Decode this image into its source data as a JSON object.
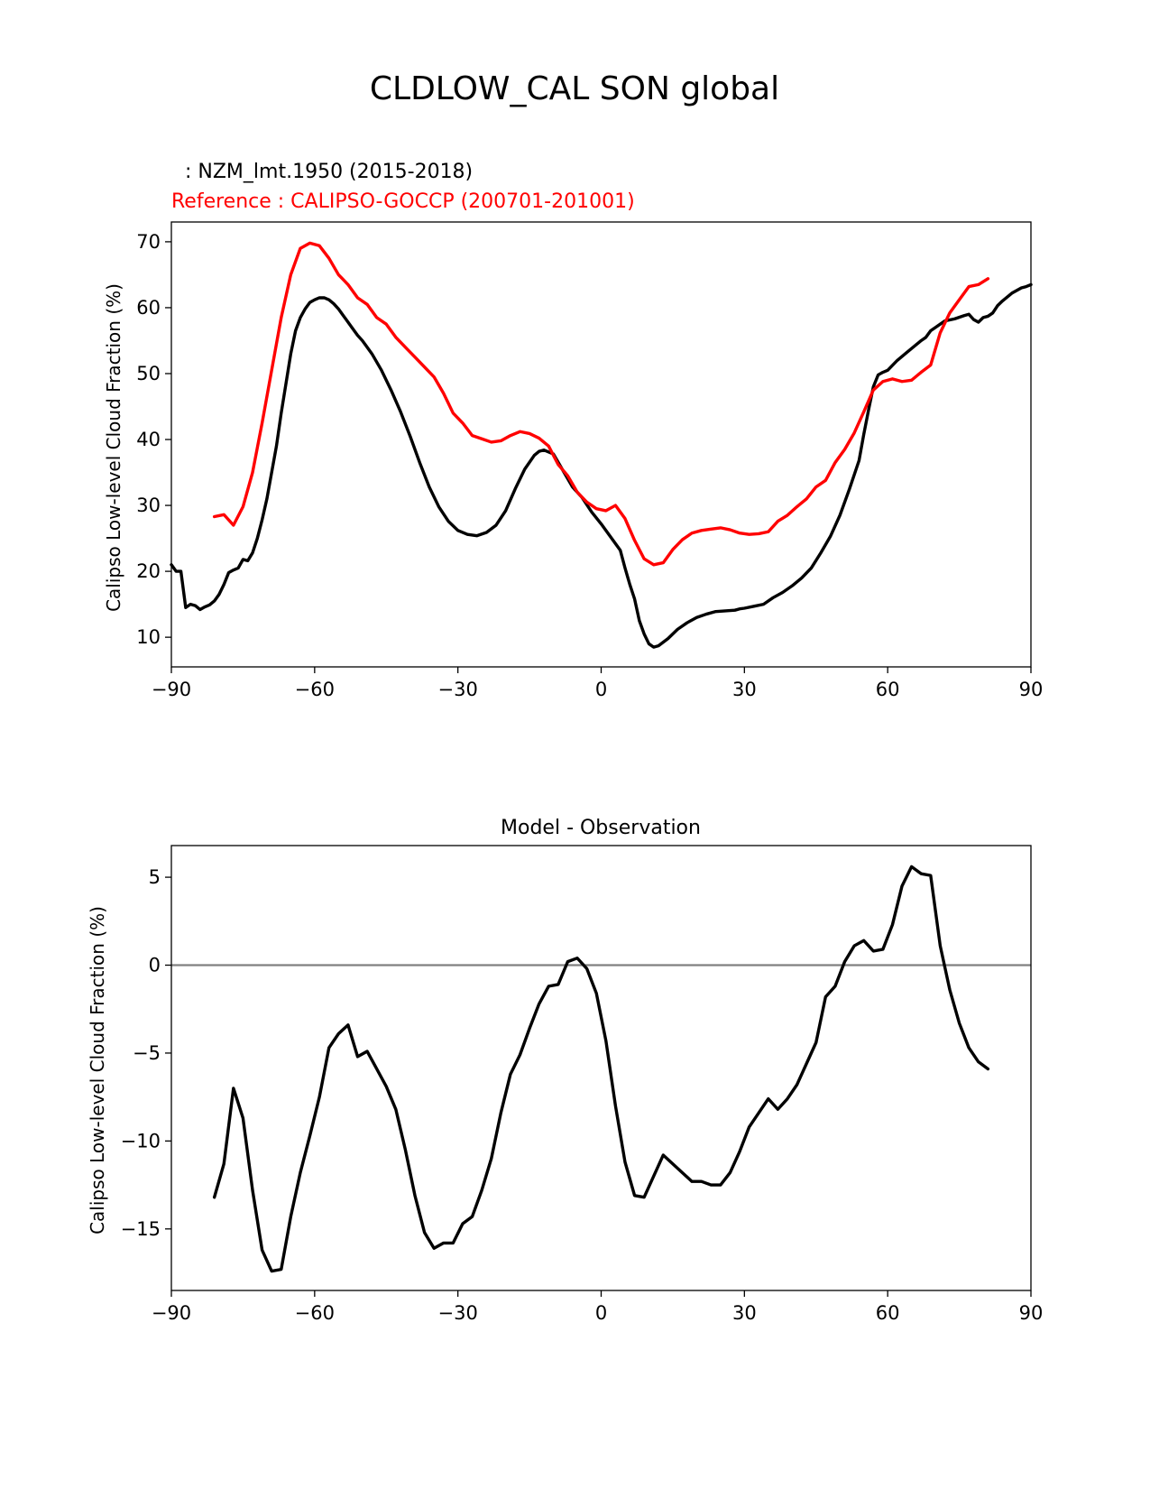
{
  "figure": {
    "suptitle": "CLDLOW_CAL SON global",
    "model_label": ": NZM_lmt.1950 (2015-2018)",
    "reference_label": "Reference : CALIPSO-GOCCP (200701-201001)",
    "model_color": "#000000",
    "reference_color": "#ff0000",
    "zero_line_color": "#808080"
  },
  "chart_data": [
    {
      "type": "line",
      "title": "",
      "xlabel": "",
      "ylabel": "Calipso Low-level Cloud Fraction (%)",
      "xlim": [
        -90,
        90
      ],
      "ylim": [
        5.5,
        73
      ],
      "xticks": [
        -90,
        -60,
        -30,
        0,
        30,
        60,
        90
      ],
      "xtick_labels": [
        "−90",
        "−60",
        "−30",
        "0",
        "30",
        "60",
        "90"
      ],
      "yticks": [
        10,
        20,
        30,
        40,
        50,
        60,
        70
      ],
      "ytick_labels": [
        "10",
        "20",
        "30",
        "40",
        "50",
        "60",
        "70"
      ],
      "series": [
        {
          "name": "NZM_lmt.1950 (2015-2018)",
          "color": "#000000",
          "x": [
            -90,
            -89,
            -88,
            -87,
            -86,
            -85,
            -84,
            -83,
            -82,
            -81,
            -80,
            -79,
            -78,
            -77,
            -76,
            -75,
            -74,
            -73,
            -72,
            -71,
            -70,
            -69,
            -68,
            -67,
            -66,
            -65,
            -64,
            -63,
            -62,
            -61,
            -60,
            -59,
            -58,
            -57,
            -56,
            -55,
            -54,
            -53,
            -52,
            -51,
            -50,
            -48,
            -46,
            -44,
            -42,
            -40,
            -38,
            -36,
            -34,
            -32,
            -30,
            -28,
            -26,
            -24,
            -22,
            -20,
            -18,
            -16,
            -14,
            -13,
            -12,
            -10,
            -8,
            -6,
            -4,
            -2,
            0,
            2,
            4,
            5,
            6,
            7,
            8,
            9,
            10,
            11,
            12,
            14,
            16,
            18,
            20,
            22,
            24,
            26,
            28,
            29,
            30,
            32,
            34,
            36,
            38,
            40,
            42,
            44,
            46,
            48,
            50,
            52,
            54,
            55,
            56,
            57,
            58,
            59,
            60,
            62,
            64,
            66,
            67,
            68,
            69,
            70,
            71,
            72,
            74,
            76,
            77,
            78,
            79,
            80,
            81,
            82,
            83,
            84,
            86,
            88,
            89,
            90
          ],
          "y": [
            21,
            20,
            20,
            14.5,
            15,
            14.8,
            14.2,
            14.6,
            14.9,
            15.5,
            16.5,
            18,
            19.8,
            20.2,
            20.5,
            21.8,
            21.6,
            22.8,
            25,
            27.8,
            31,
            35,
            39,
            44,
            48.5,
            53,
            56.5,
            58.5,
            59.8,
            60.8,
            61.2,
            61.5,
            61.5,
            61.2,
            60.6,
            59.8,
            58.8,
            57.8,
            56.8,
            55.8,
            55,
            53,
            50.5,
            47.5,
            44.2,
            40.5,
            36.5,
            32.8,
            29.8,
            27.6,
            26.2,
            25.6,
            25.4,
            25.9,
            27,
            29.2,
            32.5,
            35.5,
            37.6,
            38.2,
            38.4,
            37.8,
            35.3,
            32.8,
            31.2,
            29,
            27.2,
            25.2,
            23.2,
            20.5,
            18,
            15.8,
            12.5,
            10.5,
            9,
            8.5,
            8.7,
            9.8,
            11.2,
            12.2,
            13,
            13.5,
            13.9,
            14,
            14.1,
            14.3,
            14.4,
            14.7,
            15,
            16,
            16.8,
            17.8,
            19,
            20.5,
            22.8,
            25.3,
            28.5,
            32.5,
            36.8,
            40.8,
            44.5,
            48,
            49.8,
            50.2,
            50.5,
            52,
            53.2,
            54.4,
            55,
            55.5,
            56.5,
            57,
            57.5,
            58,
            58.3,
            58.8,
            59,
            58.2,
            57.8,
            58.5,
            58.7,
            59.2,
            60.3,
            61,
            62.2,
            63,
            63.2,
            63.5
          ]
        },
        {
          "name": "Reference : CALIPSO-GOCCP (200701-201001)",
          "color": "#ff0000",
          "x": [
            -81,
            -79,
            -77,
            -75,
            -73,
            -71,
            -69,
            -67,
            -65,
            -63,
            -61,
            -59,
            -57,
            -55,
            -53,
            -51,
            -49,
            -47,
            -45,
            -43,
            -41,
            -39,
            -37,
            -35,
            -33,
            -31,
            -29,
            -27,
            -25,
            -23,
            -21,
            -19,
            -17,
            -15,
            -13,
            -11,
            -9,
            -7,
            -5,
            -3,
            -1,
            1,
            3,
            5,
            7,
            9,
            11,
            13,
            15,
            17,
            19,
            21,
            23,
            25,
            27,
            29,
            31,
            33,
            35,
            37,
            39,
            41,
            43,
            45,
            47,
            49,
            51,
            53,
            55,
            57,
            59,
            61,
            63,
            65,
            67,
            69,
            71,
            73,
            75,
            77,
            79,
            81
          ],
          "y": [
            28.3,
            28.6,
            27,
            29.8,
            35,
            42.5,
            50.5,
            58.5,
            65,
            69,
            69.8,
            69.4,
            67.5,
            65,
            63.5,
            61.5,
            60.5,
            58.5,
            57.5,
            55.5,
            54,
            52.5,
            51,
            49.5,
            47,
            44,
            42.5,
            40.6,
            40.1,
            39.6,
            39.8,
            40.6,
            41.2,
            40.9,
            40.2,
            39,
            36.2,
            34.5,
            32,
            30.5,
            29.5,
            29.2,
            30,
            28,
            24.7,
            21.9,
            21,
            21.3,
            23.3,
            24.8,
            25.8,
            26.2,
            26.4,
            26.6,
            26.3,
            25.8,
            25.6,
            25.7,
            26,
            27.6,
            28.5,
            29.8,
            31,
            32.8,
            33.8,
            36.5,
            38.5,
            41,
            44.2,
            47.5,
            48.8,
            49.2,
            48.8,
            49,
            50.2,
            51.3,
            56.2,
            59.2,
            61.2,
            63.2,
            63.5,
            64.4
          ]
        }
      ]
    },
    {
      "type": "line",
      "title": "Model - Observation",
      "xlabel": "",
      "ylabel": "Calipso Low-level Cloud Fraction (%)",
      "xlim": [
        -90,
        90
      ],
      "ylim": [
        -18.5,
        6.8
      ],
      "xticks": [
        -90,
        -60,
        -30,
        0,
        30,
        60,
        90
      ],
      "xtick_labels": [
        "−90",
        "−60",
        "−30",
        "0",
        "30",
        "60",
        "90"
      ],
      "yticks": [
        5,
        0,
        -5,
        -10,
        -15
      ],
      "ytick_labels": [
        "5",
        "0",
        "−5",
        "−10",
        "−15"
      ],
      "reference_line_y": 0,
      "series": [
        {
          "name": "Model - Observation",
          "color": "#000000",
          "x": [
            -81,
            -79,
            -77,
            -75,
            -73,
            -71,
            -69,
            -67,
            -65,
            -63,
            -61,
            -59,
            -57,
            -55,
            -53,
            -51,
            -49,
            -47,
            -45,
            -43,
            -41,
            -39,
            -37,
            -35,
            -33,
            -31,
            -29,
            -27,
            -25,
            -23,
            -21,
            -19,
            -17,
            -15,
            -13,
            -11,
            -9,
            -7,
            -5,
            -3,
            -1,
            1,
            3,
            5,
            7,
            9,
            11,
            13,
            15,
            17,
            19,
            21,
            23,
            25,
            27,
            29,
            31,
            33,
            35,
            37,
            39,
            41,
            43,
            45,
            47,
            49,
            51,
            53,
            55,
            57,
            59,
            61,
            63,
            65,
            67,
            69,
            71,
            73,
            75,
            77,
            79,
            81
          ],
          "y": [
            -13.2,
            -11.3,
            -7,
            -8.7,
            -12.8,
            -16.2,
            -17.4,
            -17.3,
            -14.3,
            -11.8,
            -9.7,
            -7.5,
            -4.7,
            -3.9,
            -3.4,
            -5.2,
            -4.9,
            -5.9,
            -6.9,
            -8.2,
            -10.5,
            -13.1,
            -15.2,
            -16.1,
            -15.8,
            -15.8,
            -14.7,
            -14.3,
            -12.8,
            -11,
            -8.4,
            -6.2,
            -5.1,
            -3.6,
            -2.2,
            -1.2,
            -1.1,
            0.2,
            0.4,
            -0.2,
            -1.6,
            -4.3,
            -8,
            -11.2,
            -13.1,
            -13.2,
            -12,
            -10.8,
            -11.3,
            -11.8,
            -12.3,
            -12.3,
            -12.5,
            -12.5,
            -11.8,
            -10.6,
            -9.2,
            -8.4,
            -7.6,
            -8.2,
            -7.6,
            -6.8,
            -5.6,
            -4.4,
            -1.8,
            -1.2,
            0.2,
            1.1,
            1.4,
            0.8,
            0.9,
            2.3,
            4.5,
            5.6,
            5.2,
            5.1,
            1.1,
            -1.4,
            -3.3,
            -4.7,
            -5.5,
            -5.9
          ]
        }
      ]
    }
  ]
}
